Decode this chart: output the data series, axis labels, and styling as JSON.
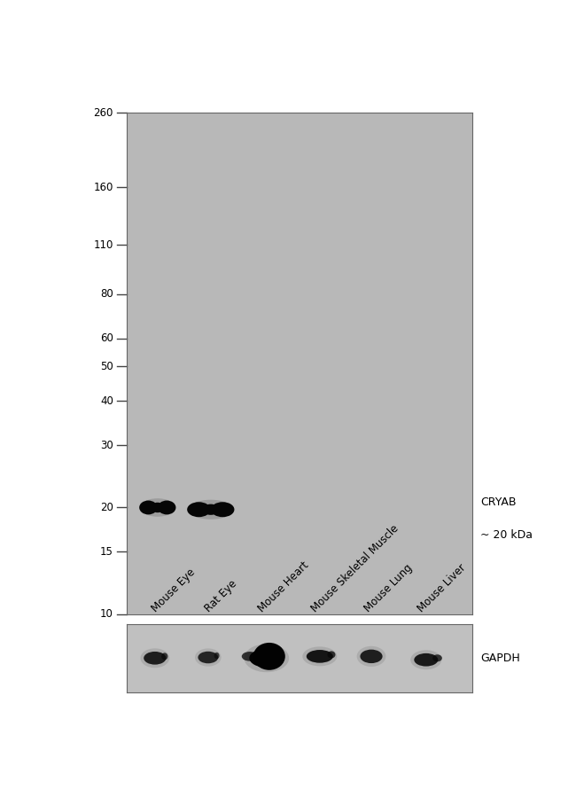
{
  "figure_width": 6.5,
  "figure_height": 9.08,
  "bg_color": "#ffffff",
  "gel_bg": "#b8b8b8",
  "gapdh_bg": "#c0c0c0",
  "border_color": "#666666",
  "lane_labels": [
    "Mouse Eye",
    "Rat Eye",
    "Mouse Heart",
    "Mouse Skeletal Muscle",
    "Mouse Lung",
    "Mouse Liver"
  ],
  "mw_markers": [
    260,
    160,
    110,
    80,
    60,
    50,
    40,
    30,
    20,
    15,
    10
  ],
  "main_label_line1": "CRYAB",
  "main_label_line2": "~ 20 kDa",
  "gapdh_label": "GAPDH",
  "lane_xs_data": [
    0.58,
    1.58,
    2.58,
    3.58,
    4.58,
    5.58
  ],
  "xlim": [
    0,
    6.5
  ],
  "num_lanes": 6,
  "band_dark": "#080808",
  "band_medium": "#1a1a1a"
}
